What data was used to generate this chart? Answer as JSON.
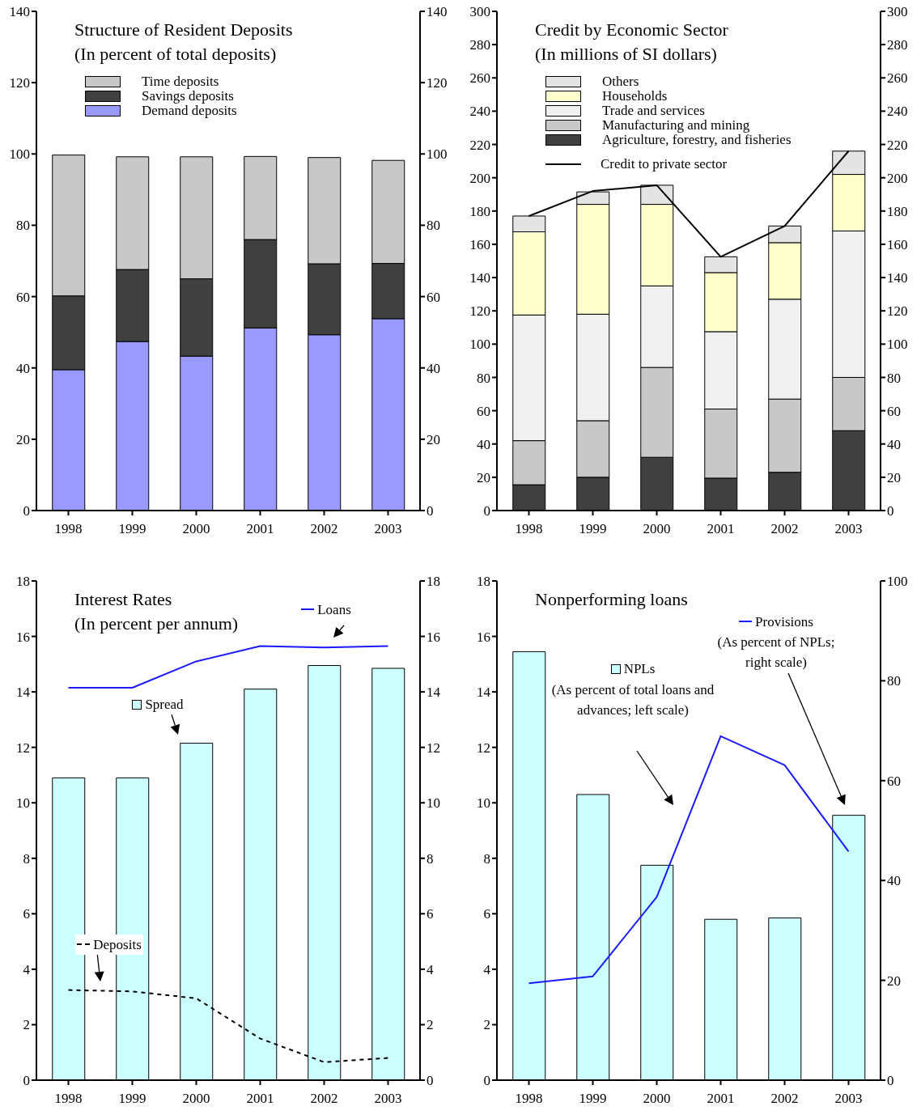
{
  "chart_data": [
    {
      "type": "bar",
      "title": "Structure of Resident Deposits",
      "subtitle": "(In percent of total deposits)",
      "categories": [
        "1998",
        "1999",
        "2000",
        "2001",
        "2002",
        "2003"
      ],
      "stacked": true,
      "legend": "top left",
      "ylim": [
        0,
        140
      ],
      "yticks": [
        0,
        20,
        40,
        60,
        80,
        100,
        120,
        140
      ],
      "y2lim": [
        0,
        140
      ],
      "y2ticks": [
        0,
        20,
        40,
        60,
        80,
        100,
        120,
        140
      ],
      "series": [
        {
          "name": "Demand deposits",
          "color": "#9999ff",
          "values": [
            39.5,
            47.4,
            43.3,
            51.2,
            49.3,
            53.8
          ]
        },
        {
          "name": "Savings deposits",
          "color": "#404040",
          "values": [
            20.7,
            20.2,
            21.7,
            24.8,
            19.9,
            15.5
          ]
        },
        {
          "name": "Time deposits",
          "color": "#c8c8c8",
          "values": [
            39.5,
            31.6,
            34.2,
            23.3,
            29.8,
            28.9
          ]
        }
      ]
    },
    {
      "type": "bar",
      "title": "Credit by Economic Sector",
      "subtitle": "(In millions of SI dollars)",
      "categories": [
        "1998",
        "1999",
        "2000",
        "2001",
        "2002",
        "2003"
      ],
      "stacked": true,
      "legend": "top left",
      "marker": "none",
      "ylim": [
        0,
        300
      ],
      "yticks": [
        0,
        20,
        40,
        60,
        80,
        100,
        120,
        140,
        160,
        180,
        200,
        220,
        240,
        260,
        280,
        300
      ],
      "y2lim": [
        0,
        300
      ],
      "y2ticks": [
        0,
        20,
        40,
        60,
        80,
        100,
        120,
        140,
        160,
        180,
        200,
        220,
        240,
        260,
        280,
        300
      ],
      "series": [
        {
          "name": "Agriculture, forestry, and fisheries",
          "color": "#404040",
          "values": [
            15.5,
            20,
            32,
            19.5,
            23,
            48
          ]
        },
        {
          "name": "Manufacturing and mining",
          "color": "#c8c8c8",
          "values": [
            26.5,
            34,
            54,
            41.5,
            44,
            32
          ]
        },
        {
          "name": "Trade and services",
          "color": "#f0f0f0",
          "values": [
            75.5,
            64,
            49,
            46.5,
            60,
            88
          ]
        },
        {
          "name": "Households",
          "color": "#ffffcc",
          "values": [
            50,
            66,
            49,
            35.5,
            34,
            34
          ]
        },
        {
          "name": "Others",
          "color": "#e4e4e4",
          "values": [
            9.5,
            7.5,
            11.5,
            9.5,
            10,
            14
          ]
        },
        {
          "name": "Credit to private sector",
          "type": "line",
          "color": "#000000",
          "values": [
            177,
            192,
            195.5,
            152.5,
            171,
            216
          ]
        }
      ]
    },
    {
      "type": "bar",
      "title": "Interest Rates",
      "subtitle": "(In percent per annum)",
      "categories": [
        "1998",
        "1999",
        "2000",
        "2001",
        "2002",
        "2003"
      ],
      "legend": "top",
      "marker": "none",
      "ylim": [
        0,
        18
      ],
      "yticks": [
        0,
        2,
        4,
        6,
        8,
        10,
        12,
        14,
        16,
        18
      ],
      "y2lim": [
        0,
        18
      ],
      "y2ticks": [
        0,
        2,
        4,
        6,
        8,
        10,
        12,
        14,
        16,
        18
      ],
      "series": [
        {
          "name": "Spread",
          "color": "#ccffff",
          "values": [
            10.9,
            10.9,
            12.15,
            14.1,
            14.95,
            14.85
          ]
        },
        {
          "name": "Loans",
          "type": "line",
          "color": "#1a1aff",
          "values": [
            14.15,
            14.15,
            15.1,
            15.65,
            15.6,
            15.65
          ]
        },
        {
          "name": "Deposits",
          "type": "line",
          "color": "#000000",
          "line_style": "dashed",
          "values": [
            3.25,
            3.2,
            2.95,
            1.5,
            0.65,
            0.8
          ]
        }
      ]
    },
    {
      "type": "bar",
      "title": "Nonperforming loans",
      "categories": [
        "1998",
        "1999",
        "2000",
        "2001",
        "2002",
        "2003"
      ],
      "legend": "top",
      "marker": "none",
      "ylim": [
        0,
        18
      ],
      "yticks": [
        0,
        2,
        4,
        6,
        8,
        10,
        12,
        14,
        16,
        18
      ],
      "y2lim": [
        0,
        100
      ],
      "y2ticks": [
        0,
        20,
        40,
        60,
        80,
        100
      ],
      "annotations": [
        "(As percent of total loans and advances; left scale)",
        "(As percent of NPLs; right scale)"
      ],
      "series": [
        {
          "name": "NPLs",
          "color": "#ccffff",
          "values": [
            15.45,
            10.3,
            7.75,
            5.8,
            5.85,
            9.55
          ]
        },
        {
          "name": "Provisions",
          "type": "line",
          "axis": "y2",
          "color": "#1a1aff",
          "values": [
            19.4,
            20.8,
            36.7,
            68.9,
            63.1,
            45.8
          ]
        }
      ]
    }
  ]
}
